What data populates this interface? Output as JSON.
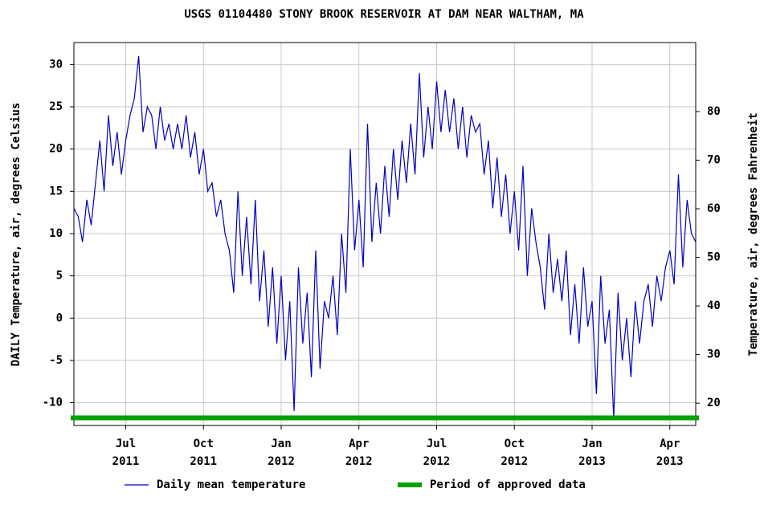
{
  "chart_data": {
    "type": "line",
    "title": "USGS 01104480 STONY BROOK RESERVOIR AT DAM NEAR WALTHAM, MA",
    "ylabel": "DAILY Temperature, air, degrees Celsius",
    "y2label": "Temperature, air, degrees Fahrenheit",
    "xlim": [
      "2011-05",
      "2013-05"
    ],
    "xticks": [
      {
        "value": "2011-07",
        "label": "Jul\n2011"
      },
      {
        "value": "2011-10",
        "label": "Oct\n2011"
      },
      {
        "value": "2012-01",
        "label": "Jan\n2012"
      },
      {
        "value": "2012-04",
        "label": "Apr\n2012"
      },
      {
        "value": "2012-07",
        "label": "Jul\n2012"
      },
      {
        "value": "2012-10",
        "label": "Oct\n2012"
      },
      {
        "value": "2013-01",
        "label": "Jan\n2013"
      },
      {
        "value": "2013-04",
        "label": "Apr\n2013"
      }
    ],
    "ylim": [
      -12.7,
      32.6
    ],
    "yticks": [
      -10,
      -5,
      0,
      5,
      10,
      15,
      20,
      25,
      30
    ],
    "y2lim": [
      15.4,
      94.2
    ],
    "y2ticks": [
      20,
      30,
      40,
      50,
      60,
      70,
      80
    ],
    "grid": true,
    "series": [
      {
        "name": "Daily mean temperature",
        "color": "#0000c0",
        "months": [
          "2011-05",
          "2011-06",
          "2011-07",
          "2011-08",
          "2011-09",
          "2011-10",
          "2011-11",
          "2011-12",
          "2012-01",
          "2012-02",
          "2012-03",
          "2012-04",
          "2012-05",
          "2012-06",
          "2012-07",
          "2012-08",
          "2012-09",
          "2012-10",
          "2012-11",
          "2012-12",
          "2013-01",
          "2013-02",
          "2013-03",
          "2013-04",
          "2013-05"
        ],
        "values": [
          [
            13,
            12,
            9,
            14,
            11,
            16
          ],
          [
            21,
            15,
            24,
            18,
            22,
            17
          ],
          [
            21,
            24,
            26,
            31,
            22,
            25
          ],
          [
            24,
            20,
            25,
            21,
            23,
            20
          ],
          [
            23,
            20,
            24,
            19,
            22,
            17
          ],
          [
            20,
            15,
            16,
            12,
            14,
            10
          ],
          [
            8,
            3,
            15,
            5,
            12,
            4
          ],
          [
            14,
            2,
            8,
            -1,
            6,
            -3
          ],
          [
            5,
            -5,
            2,
            -11,
            6,
            -3
          ],
          [
            3,
            -7,
            8,
            -6,
            2,
            0
          ],
          [
            5,
            -2,
            10,
            3,
            20,
            8
          ],
          [
            14,
            6,
            23,
            9,
            16,
            10
          ],
          [
            18,
            12,
            20,
            14,
            21,
            16
          ],
          [
            23,
            17,
            29,
            19,
            25,
            20
          ],
          [
            28,
            22,
            27,
            22,
            26,
            20
          ],
          [
            25,
            19,
            24,
            22,
            23,
            17
          ],
          [
            21,
            13,
            19,
            12,
            17,
            10
          ],
          [
            15,
            8,
            18,
            5,
            13,
            9
          ],
          [
            6,
            1,
            10,
            3,
            7,
            2
          ],
          [
            8,
            -2,
            4,
            -3,
            6,
            -1
          ],
          [
            2,
            -9,
            5,
            -3,
            1,
            -12
          ],
          [
            3,
            -5,
            0,
            -7,
            2,
            -3
          ],
          [
            2,
            4,
            -1,
            5,
            2,
            6
          ],
          [
            8,
            4,
            17,
            6,
            14,
            10
          ],
          [
            9
          ]
        ]
      },
      {
        "name": "Period of approved data",
        "color": "#00a000",
        "start": "2011-05",
        "end": "2013-05",
        "value": -11.8
      }
    ]
  }
}
